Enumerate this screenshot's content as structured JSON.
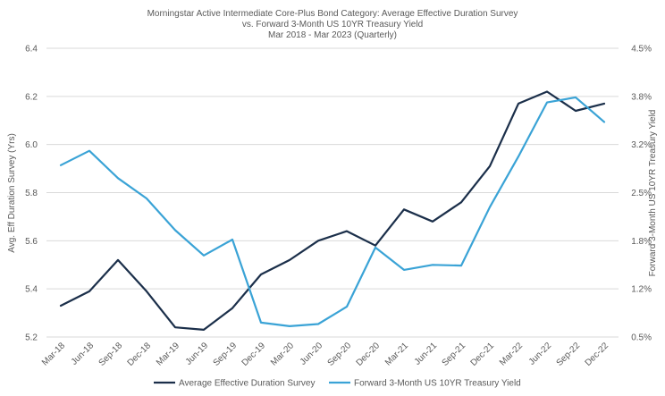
{
  "chart_data": {
    "type": "line",
    "title": [
      "Morningstar Active Intermediate Core-Plus Bond Category: Average Effective Duration Survey",
      "vs. Forward 3-Month US 10YR Treasury Yield",
      "Mar 2018 - Mar 2023 (Quarterly)"
    ],
    "x": [
      "Mar-18",
      "Jun-18",
      "Sep-18",
      "Dec-18",
      "Mar-19",
      "Jun-19",
      "Sep-19",
      "Dec-19",
      "Mar-20",
      "Jun-20",
      "Sep-20",
      "Dec-20",
      "Mar-21",
      "Jun-21",
      "Sep-21",
      "Dec-21",
      "Mar-22",
      "Jun-22",
      "Sep-22",
      "Dec-22"
    ],
    "ylabel_left": "Avg. Eff Duration Survey (Yrs)",
    "ylabel_right": "Forward 3-Month US 10YR Treasury Yield",
    "ylim_left": [
      5.2,
      6.4
    ],
    "ylim_right": [
      0.5,
      4.5
    ],
    "yticks_left": [
      "5.2",
      "5.4",
      "5.6",
      "5.8",
      "6.0",
      "6.2",
      "6.4"
    ],
    "yticks_right": [
      "0.5%",
      "1.2%",
      "1.8%",
      "2.5%",
      "3.2%",
      "3.8%",
      "4.5%"
    ],
    "grid": "horizontal",
    "legend_position": "bottom",
    "series": [
      {
        "name": "Average Effective Duration Survey",
        "axis": "left",
        "color": "#1b2f4a",
        "values": [
          5.33,
          5.39,
          5.52,
          5.39,
          5.24,
          5.23,
          5.32,
          5.46,
          5.52,
          5.6,
          5.64,
          5.58,
          5.73,
          5.68,
          5.76,
          5.91,
          6.17,
          6.22,
          6.14,
          6.17
        ]
      },
      {
        "name": "Forward 3-Month US 10YR Treasury Yield",
        "axis": "right",
        "color": "#3aa3d6",
        "values": [
          2.88,
          3.08,
          2.7,
          2.42,
          1.98,
          1.63,
          1.85,
          0.7,
          0.65,
          0.68,
          0.92,
          1.74,
          1.43,
          1.5,
          1.49,
          2.3,
          3.0,
          3.75,
          3.82,
          3.48
        ]
      }
    ]
  }
}
